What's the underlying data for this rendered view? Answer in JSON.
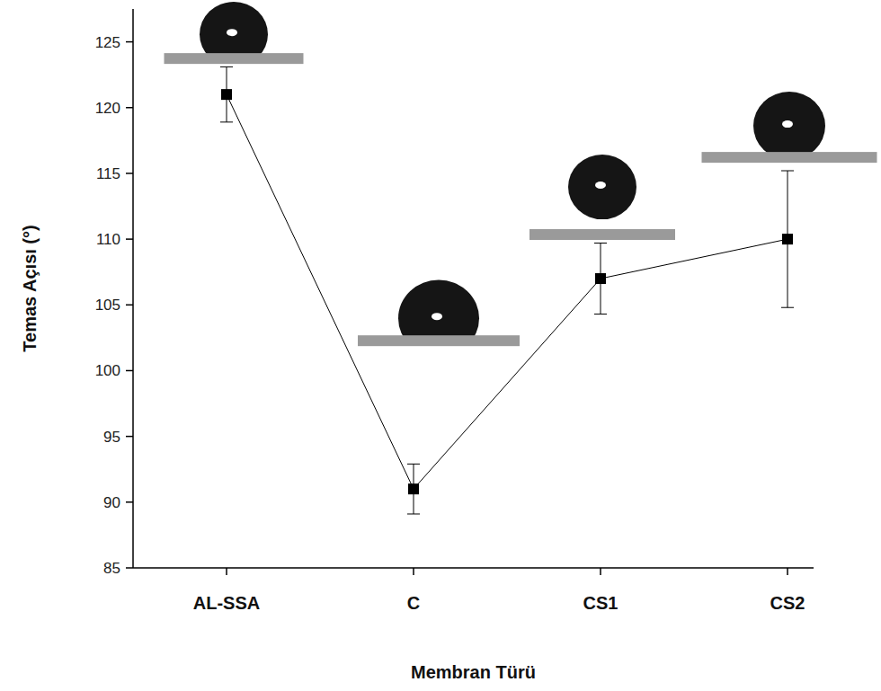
{
  "chart_data": {
    "type": "line",
    "x_label": "Membran Türü",
    "y_label": "Temas Açısı (°)",
    "categories": [
      "AL-SSA",
      "C",
      "CS1",
      "CS2"
    ],
    "values": [
      121,
      91,
      107,
      110
    ],
    "errors": [
      2.1,
      1.9,
      2.7,
      5.2
    ],
    "color": "#000000",
    "marker": "square",
    "line_style": "solid",
    "ylim": [
      85,
      127.5
    ],
    "yticks": [
      85,
      90,
      95,
      100,
      105,
      110,
      115,
      120,
      125
    ],
    "grid": false
  }
}
